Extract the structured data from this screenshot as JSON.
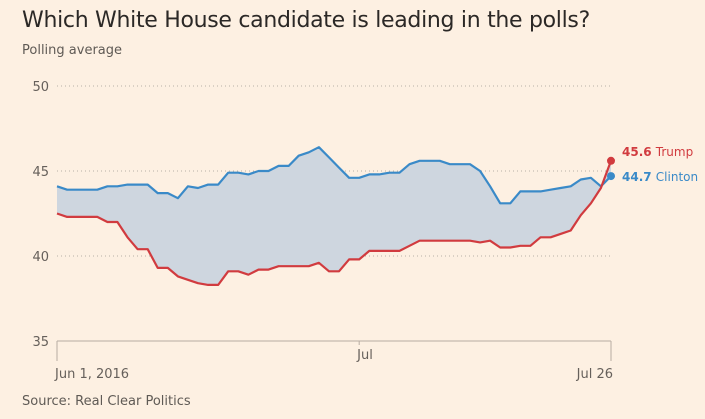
{
  "chart_data": {
    "type": "line",
    "title": "Which White House candidate is leading in the polls?",
    "subtitle": "Polling average",
    "source": "Source: Real Clear Politics",
    "xlabel": "",
    "ylabel": "",
    "ylim": [
      35,
      50
    ],
    "yticks": [
      35,
      40,
      45,
      50
    ],
    "ytick_labels": [
      "35",
      "40",
      "45",
      "50"
    ],
    "x_start": "2016-06-01",
    "x_end": "2016-07-26",
    "xticks": [
      {
        "day": 0,
        "label": "Jun 1, 2016",
        "align": "start"
      },
      {
        "day": 30,
        "label": "Jul",
        "align": "start"
      },
      {
        "day": 55,
        "label": "Jul 26",
        "align": "end"
      }
    ],
    "grid": true,
    "shaded_between_series": true,
    "series": [
      {
        "name": "Clinton",
        "color": "#3a8ac8",
        "end_value": "44.7",
        "end_label": "Clinton",
        "days": [
          0,
          1,
          2,
          3,
          4,
          5,
          6,
          7,
          8,
          9,
          10,
          11,
          12,
          13,
          14,
          15,
          16,
          17,
          18,
          19,
          20,
          21,
          22,
          23,
          24,
          25,
          26,
          27,
          28,
          29,
          30,
          31,
          32,
          33,
          34,
          35,
          36,
          37,
          38,
          39,
          40,
          41,
          42,
          43,
          44,
          45,
          46,
          47,
          48,
          49,
          50,
          51,
          52,
          53,
          54,
          55
        ],
        "values": [
          44.1,
          43.9,
          43.9,
          43.9,
          43.9,
          44.1,
          44.1,
          44.2,
          44.2,
          44.2,
          43.7,
          43.7,
          43.4,
          44.1,
          44.0,
          44.2,
          44.2,
          44.9,
          44.9,
          44.8,
          45.0,
          45.0,
          45.3,
          45.3,
          45.9,
          46.1,
          46.4,
          45.8,
          45.2,
          44.6,
          44.6,
          44.8,
          44.8,
          44.9,
          44.9,
          45.4,
          45.6,
          45.6,
          45.6,
          45.4,
          45.4,
          45.4,
          45.0,
          44.1,
          43.1,
          43.1,
          43.8,
          43.8,
          43.8,
          43.9,
          44.0,
          44.1,
          44.5,
          44.6,
          44.1,
          44.7
        ]
      },
      {
        "name": "Trump",
        "color": "#d13b3f",
        "end_value": "45.6",
        "end_label": "Trump",
        "days": [
          0,
          1,
          2,
          3,
          4,
          5,
          6,
          7,
          8,
          9,
          10,
          11,
          12,
          13,
          14,
          15,
          16,
          17,
          18,
          19,
          20,
          21,
          22,
          23,
          24,
          25,
          26,
          27,
          28,
          29,
          30,
          31,
          32,
          33,
          34,
          35,
          36,
          37,
          38,
          39,
          40,
          41,
          42,
          43,
          44,
          45,
          46,
          47,
          48,
          49,
          50,
          51,
          52,
          53,
          54,
          55
        ],
        "values": [
          42.5,
          42.3,
          42.3,
          42.3,
          42.3,
          42.0,
          42.0,
          41.1,
          40.4,
          40.4,
          39.3,
          39.3,
          38.8,
          38.6,
          38.4,
          38.3,
          38.3,
          39.1,
          39.1,
          38.9,
          39.2,
          39.2,
          39.4,
          39.4,
          39.4,
          39.4,
          39.6,
          39.1,
          39.1,
          39.8,
          39.8,
          40.3,
          40.3,
          40.3,
          40.3,
          40.6,
          40.9,
          40.9,
          40.9,
          40.9,
          40.9,
          40.9,
          40.8,
          40.9,
          40.5,
          40.5,
          40.6,
          40.6,
          41.1,
          41.1,
          41.3,
          41.5,
          42.4,
          43.1,
          44.0,
          45.6
        ]
      }
    ]
  },
  "colors": {
    "background": "#fdf0e2",
    "fill_between": "#ced6df",
    "grid": "#b8b0a6",
    "axis": "#b8ada3"
  }
}
